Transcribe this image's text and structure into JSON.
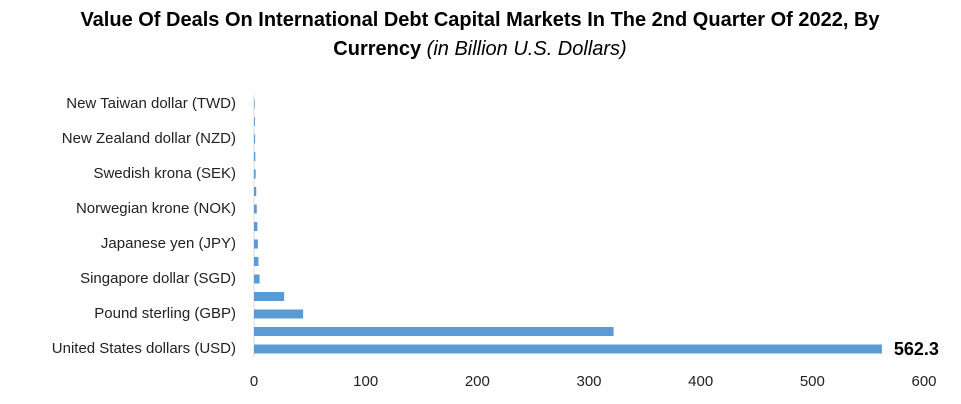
{
  "chart_data": {
    "type": "hbar",
    "title": "Value Of Deals On International Debt Capital Markets In The 2nd Quarter Of 2022, By Currency",
    "subtitle": "(in Billion U.S. Dollars)",
    "categories": [
      "United States dollars (USD)",
      null,
      "Pound sterling (GBP)",
      null,
      "Singapore dollar (SGD)",
      null,
      "Japanese yen (JPY)",
      null,
      "Norwegian krone (NOK)",
      null,
      "Swedish krona (SEK)",
      null,
      "New Zealand dollar (NZD)",
      null,
      "New Taiwan dollar (TWD)"
    ],
    "values": [
      562.3,
      322,
      44,
      27,
      5,
      4,
      3.5,
      3,
      2.5,
      2,
      1.5,
      1.2,
      1,
      0.8,
      0.6
    ],
    "value_labels": [
      "562.3",
      null,
      null,
      null,
      null,
      null,
      null,
      null,
      null,
      null,
      null,
      null,
      null,
      null,
      null
    ],
    "color": "#5b9bd5",
    "xlim": [
      0,
      600
    ],
    "xticks": [
      0,
      100,
      200,
      300,
      400,
      500,
      600
    ],
    "grid": false
  }
}
